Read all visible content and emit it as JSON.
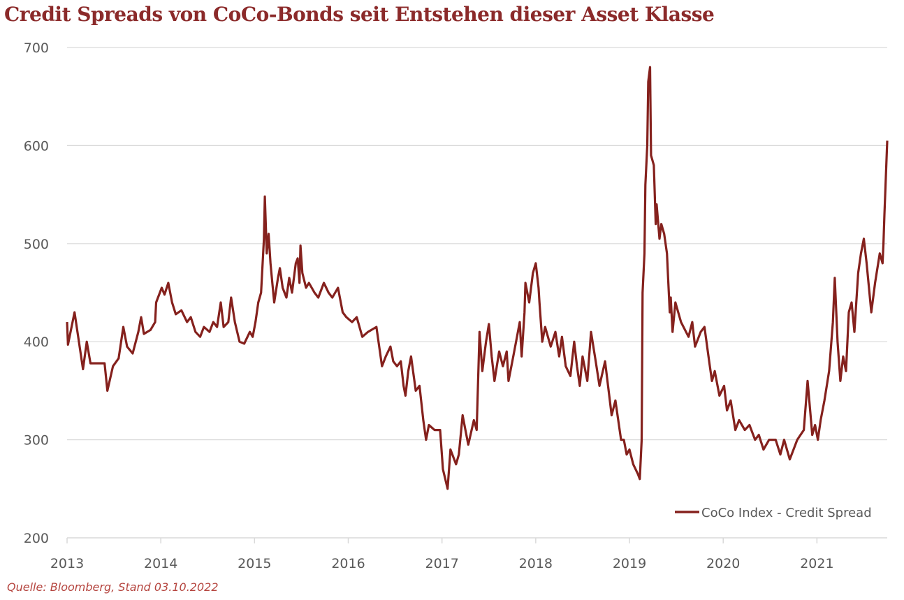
{
  "chart_data": {
    "type": "line",
    "title": "Credit Spreads von CoCo-Bonds seit Entstehen dieser Asset Klasse",
    "xlabel": "",
    "ylabel": "",
    "xlim": [
      2013,
      2021.75
    ],
    "ylim": [
      200,
      700
    ],
    "x_ticks": [
      "2013",
      "2014",
      "2015",
      "2016",
      "2017",
      "2018",
      "2019",
      "2020",
      "2021"
    ],
    "y_ticks": [
      "200",
      "300",
      "400",
      "500",
      "600",
      "700"
    ],
    "grid": "horizontal",
    "legend_position": "bottom-right",
    "colors": {
      "series": "#85211d",
      "title": "#8b2a2a",
      "grid": "#d9d9d9"
    },
    "series": [
      {
        "name": "CoCo Index - Credit Spread",
        "x": [
          2013.0,
          2013.01,
          2013.08,
          2013.17,
          2013.21,
          2013.25,
          2013.4,
          2013.43,
          2013.49,
          2013.55,
          2013.6,
          2013.64,
          2013.7,
          2013.76,
          2013.79,
          2013.82,
          2013.89,
          2013.94,
          2013.95,
          2014.01,
          2014.04,
          2014.08,
          2014.12,
          2014.16,
          2014.22,
          2014.28,
          2014.32,
          2014.37,
          2014.42,
          2014.46,
          2014.52,
          2014.56,
          2014.6,
          2014.64,
          2014.67,
          2014.72,
          2014.75,
          2014.79,
          2014.84,
          2014.89,
          2014.95,
          2014.98,
          2015.01,
          2015.04,
          2015.07,
          2015.1,
          2015.11,
          2015.13,
          2015.15,
          2015.17,
          2015.19,
          2015.21,
          2015.25,
          2015.27,
          2015.3,
          2015.34,
          2015.37,
          2015.4,
          2015.44,
          2015.46,
          2015.48,
          2015.49,
          2015.51,
          2015.55,
          2015.58,
          2015.64,
          2015.68,
          2015.74,
          2015.79,
          2015.83,
          2015.89,
          2015.94,
          2015.98,
          2016.04,
          2016.09,
          2016.15,
          2016.21,
          2016.3,
          2016.33,
          2016.36,
          2016.4,
          2016.45,
          2016.48,
          2016.52,
          2016.56,
          2016.59,
          2016.61,
          2016.64,
          2016.67,
          2016.72,
          2016.76,
          2016.8,
          2016.83,
          2016.86,
          2016.92,
          2016.98,
          2017.01,
          2017.06,
          2017.09,
          2017.15,
          2017.18,
          2017.22,
          2017.25,
          2017.28,
          2017.34,
          2017.37,
          2017.4,
          2017.43,
          2017.47,
          2017.5,
          2017.53,
          2017.56,
          2017.61,
          2017.65,
          2017.69,
          2017.71,
          2017.76,
          2017.79,
          2017.83,
          2017.85,
          2017.88,
          2017.89,
          2017.93,
          2017.97,
          2018.0,
          2018.03,
          2018.04,
          2018.07,
          2018.1,
          2018.16,
          2018.21,
          2018.25,
          2018.28,
          2018.32,
          2018.37,
          2018.41,
          2018.44,
          2018.47,
          2018.5,
          2018.55,
          2018.59,
          2018.64,
          2018.68,
          2018.74,
          2018.81,
          2018.85,
          2018.91,
          2018.94,
          2018.97,
          2019.0,
          2019.04,
          2019.09,
          2019.11,
          2019.13,
          2019.14,
          2019.16,
          2019.17,
          2019.19,
          2019.2,
          2019.22,
          2019.23,
          2019.26,
          2019.28,
          2019.29,
          2019.32,
          2019.34,
          2019.37,
          2019.4,
          2019.41,
          2019.43,
          2019.44,
          2019.46,
          2019.49,
          2019.52,
          2019.55,
          2019.63,
          2019.67,
          2019.7,
          2019.76,
          2019.8,
          2019.85,
          2019.88,
          2019.91,
          2019.96,
          2020.01,
          2020.04,
          2020.08,
          2020.13,
          2020.17,
          2020.23,
          2020.28,
          2020.34,
          2020.38,
          2020.43,
          2020.49,
          2020.56,
          2020.61,
          2020.65,
          2020.71,
          2020.79,
          2020.86,
          2020.9,
          2020.95,
          2020.98,
          2021.01,
          2021.04,
          2021.08,
          2021.13,
          2021.17,
          2021.19,
          2021.22,
          2021.25,
          2021.28,
          2021.31,
          2021.34,
          2021.37,
          2021.4,
          2021.44,
          2021.47,
          2021.5,
          2021.53,
          2021.58,
          2021.62,
          2021.67,
          2021.7,
          2021.71,
          2021.72,
          2021.75
        ],
        "y": [
          420,
          397,
          430,
          372,
          400,
          378,
          378,
          350,
          375,
          383,
          415,
          395,
          388,
          410,
          425,
          408,
          412,
          420,
          440,
          455,
          448,
          460,
          440,
          428,
          432,
          420,
          425,
          410,
          405,
          415,
          410,
          420,
          415,
          440,
          415,
          420,
          445,
          420,
          400,
          398,
          410,
          405,
          420,
          440,
          450,
          505,
          548,
          490,
          510,
          480,
          460,
          440,
          465,
          475,
          455,
          445,
          465,
          450,
          480,
          485,
          460,
          498,
          470,
          455,
          460,
          450,
          445,
          460,
          450,
          445,
          455,
          430,
          425,
          420,
          425,
          405,
          410,
          415,
          395,
          375,
          385,
          395,
          380,
          375,
          380,
          355,
          345,
          370,
          385,
          350,
          355,
          320,
          300,
          315,
          310,
          310,
          270,
          250,
          290,
          275,
          285,
          325,
          310,
          295,
          320,
          310,
          410,
          370,
          400,
          418,
          385,
          360,
          390,
          375,
          390,
          360,
          385,
          400,
          420,
          385,
          430,
          460,
          440,
          470,
          480,
          455,
          440,
          400,
          415,
          395,
          410,
          385,
          405,
          375,
          365,
          400,
          375,
          355,
          385,
          360,
          410,
          380,
          355,
          380,
          325,
          340,
          300,
          300,
          285,
          290,
          275,
          265,
          260,
          300,
          450,
          490,
          560,
          600,
          665,
          680,
          590,
          580,
          520,
          540,
          505,
          520,
          510,
          490,
          470,
          430,
          445,
          410,
          440,
          430,
          420,
          405,
          420,
          395,
          410,
          415,
          380,
          360,
          370,
          345,
          355,
          330,
          340,
          310,
          320,
          310,
          315,
          300,
          305,
          290,
          300,
          300,
          285,
          300,
          280,
          300,
          310,
          360,
          305,
          315,
          300,
          320,
          340,
          370,
          420,
          465,
          400,
          360,
          385,
          370,
          430,
          440,
          410,
          470,
          490,
          505,
          480,
          430,
          460,
          490,
          480,
          500,
          530,
          605
        ]
      }
    ]
  },
  "source": "Quelle: Bloomberg, Stand 03.10.2022"
}
